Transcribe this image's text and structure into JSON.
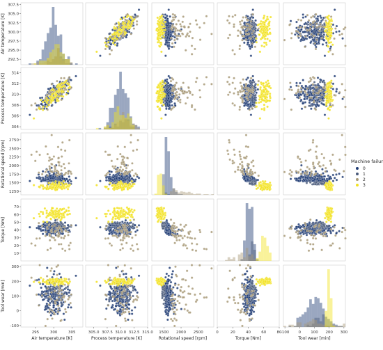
{
  "chart_data": {
    "type": "pairplot",
    "title": "",
    "variables": [
      {
        "key": "air",
        "label": "Air temperature [K]",
        "range": [
          291,
          308
        ],
        "ticks": [
          292.5,
          295.0,
          297.5,
          300.0,
          302.5,
          305.0,
          307.5
        ],
        "xticks": [
          295,
          300,
          305
        ],
        "mean": 300,
        "sd": 2.0
      },
      {
        "key": "proc",
        "label": "Process temperature [K]",
        "range": [
          303.5,
          315
        ],
        "ticks": [
          304,
          306,
          308,
          310,
          312,
          314
        ],
        "xticks": [
          305.0,
          307.5,
          310.0,
          312.5,
          315.0
        ],
        "mean": 310,
        "sd": 1.5
      },
      {
        "key": "rpm",
        "label": "Rotational speed [rpm]",
        "range": [
          1150,
          2950
        ],
        "ticks": [
          1250,
          1500,
          1750,
          2000,
          2250,
          2500,
          2750
        ],
        "xticks": [
          1500,
          2000,
          2500
        ],
        "mean": 1540,
        "sd": 180
      },
      {
        "key": "torque",
        "label": "Torque [Nm]",
        "range": [
          0,
          80
        ],
        "ticks": [
          10,
          20,
          30,
          40,
          50,
          60,
          70
        ],
        "xticks": [
          0,
          20,
          40,
          60,
          80
        ],
        "mean": 40,
        "sd": 10
      },
      {
        "key": "wear",
        "label": "Tool wear [min]",
        "range": [
          -110,
          310
        ],
        "ticks": [
          -100,
          0,
          100,
          200,
          300
        ],
        "xticks": [
          -100,
          0,
          100,
          200,
          300
        ],
        "mean": 108,
        "sd": 63
      }
    ],
    "legend": {
      "title": "Machine failure",
      "placement": "right",
      "entries": [
        {
          "label": "0",
          "color": "#1f3b73"
        },
        {
          "label": "1",
          "color": "#4a5a7a"
        },
        {
          "label": "2",
          "color": "#a89a78"
        },
        {
          "label": "3",
          "color": "#f2e21f"
        }
      ]
    },
    "hue_groups": [
      {
        "label": "0",
        "color": "#1f3b73",
        "air": [
          300,
          2.0
        ],
        "proc": [
          310,
          1.5
        ],
        "rpm": [
          1540,
          160
        ],
        "torque": [
          40,
          9
        ],
        "wear": [
          108,
          63
        ]
      },
      {
        "label": "1",
        "color": "#4a5a7a",
        "air": [
          301,
          1.5
        ],
        "proc": [
          310.5,
          1.3
        ],
        "rpm": [
          1450,
          60
        ],
        "torque": [
          50,
          6
        ],
        "wear": [
          120,
          40
        ]
      },
      {
        "label": "2",
        "color": "#a89a78",
        "air": [
          300,
          2.5
        ],
        "proc": [
          310,
          1.8
        ],
        "rpm": [
          1700,
          500
        ],
        "torque": [
          45,
          20
        ],
        "wear": [
          110,
          90
        ]
      },
      {
        "label": "3",
        "color": "#f2e21f",
        "air": [
          300.5,
          2.0
        ],
        "proc": [
          310,
          1.5
        ],
        "rpm": [
          1400,
          60
        ],
        "torque": [
          60,
          4
        ],
        "wear": [
          200,
          10
        ]
      }
    ]
  }
}
